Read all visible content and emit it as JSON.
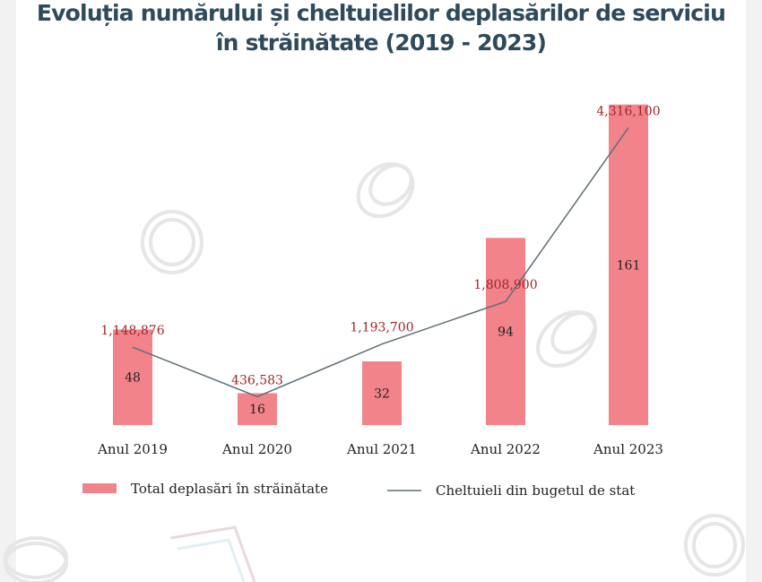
{
  "title": {
    "line1": "Evoluția numărului și cheltuielilor deplasărilor de serviciu",
    "line2": "în străinătate (2019 - 2023)"
  },
  "chart_data": {
    "type": "bar",
    "title": "Evoluția numărului și cheltuielilor deplasărilor de serviciu în străinătate (2019 - 2023)",
    "categories": [
      "Anul 2019",
      "Anul 2020",
      "Anul 2021",
      "Anul 2022",
      "Anul 2023"
    ],
    "series": [
      {
        "name": "Total deplasări în străinătate",
        "type": "bar",
        "values": [
          48,
          16,
          32,
          94,
          161
        ],
        "labels": [
          "48",
          "16",
          "32",
          "94",
          "161"
        ],
        "color": "#f2838a"
      },
      {
        "name": "Cheltuieli din bugetul de stat",
        "type": "line",
        "values": [
          1148876,
          436583,
          1193700,
          1808900,
          4316100
        ],
        "labels": [
          "1,148,876",
          "436,583",
          "1,193,700",
          "1,808,900",
          "4,316,100"
        ],
        "color": "#5f6f78",
        "label_color": "#a0262b"
      }
    ],
    "legend": "bottom",
    "grid": false
  }
}
